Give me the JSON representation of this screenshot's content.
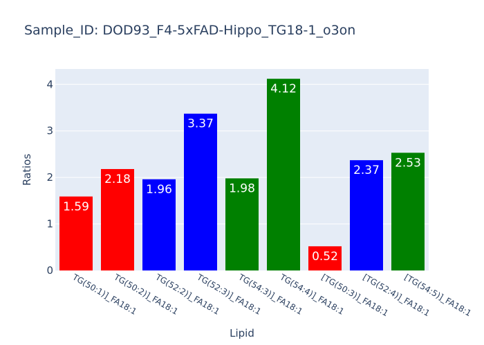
{
  "chart_data": {
    "type": "bar",
    "title": "Sample_ID: DOD93_F4-5xFAD-Hippo_TG18-1_o3on",
    "xlabel": "Lipid",
    "ylabel": "Ratios",
    "ylim": [
      0,
      4.33
    ],
    "yticks": [
      0,
      1,
      2,
      3,
      4
    ],
    "grid": true,
    "categories": [
      "TG(50:1)]_FA18:1",
      "TG(50:2)]_FA18:1",
      "TG(52:2)]_FA18:1",
      "TG(52:3)]_FA18:1",
      "TG(54:3)]_FA18:1",
      "TG(54:4)]_FA18:1",
      "[TG(50:3)]_FA18:1",
      "[TG(52:4)]_FA18:1",
      "[TG(54:5)]_FA18:1"
    ],
    "values": [
      1.59,
      2.18,
      1.96,
      3.37,
      1.98,
      4.12,
      0.52,
      2.37,
      2.53
    ],
    "value_labels": [
      "1.59",
      "2.18",
      "1.96",
      "3.37",
      "1.98",
      "4.12",
      "0.52",
      "2.37",
      "2.53"
    ],
    "bar_colors": [
      "#ff0000",
      "#ff0000",
      "#0000ff",
      "#0000ff",
      "#008000",
      "#008000",
      "#ff0000",
      "#0000ff",
      "#008000"
    ],
    "plot_background": "#e5ecf6",
    "grid_color": "#ffffff",
    "text_color": "#2a3f5f"
  }
}
